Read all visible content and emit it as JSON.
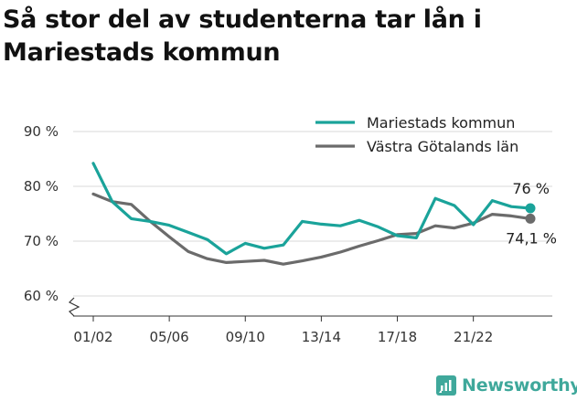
{
  "title": "Så stor del av studenterna tar lån i Mariestads kommun",
  "brand": {
    "name": "Newsworthy",
    "icon": "newsworthy-logo-icon",
    "color": "#3fa89b"
  },
  "chart_data": {
    "type": "line",
    "title": "Så stor del av studenterna tar lån i Mariestads kommun",
    "xlabel": "",
    "ylabel": "",
    "ylim": [
      60,
      90
    ],
    "yticks": [
      60,
      70,
      80,
      90
    ],
    "ytick_labels": [
      "60 %",
      "70 %",
      "80 %",
      "90 %"
    ],
    "y_axis_break": true,
    "grid": true,
    "legend_placement": "top-right",
    "categories": [
      "01/02",
      "02/03",
      "03/04",
      "04/05",
      "05/06",
      "06/07",
      "07/08",
      "08/09",
      "09/10",
      "10/11",
      "11/12",
      "12/13",
      "13/14",
      "14/15",
      "15/16",
      "16/17",
      "17/18",
      "18/19",
      "19/20",
      "20/21",
      "21/22",
      "22/23",
      "23/24",
      "24/25"
    ],
    "xtick_labels": [
      "01/02",
      "05/06",
      "09/10",
      "13/14",
      "17/18",
      "21/22"
    ],
    "series": [
      {
        "name": "Mariestads kommun",
        "color": "#1aa39a",
        "values": [
          84.2,
          77.2,
          74.1,
          73.6,
          72.9,
          71.6,
          70.3,
          67.7,
          69.6,
          68.7,
          69.3,
          73.6,
          73.1,
          72.8,
          73.8,
          72.6,
          71.0,
          70.6,
          77.8,
          76.5,
          73.0,
          77.4,
          76.3,
          76.0
        ],
        "end_label": "76 %"
      },
      {
        "name": "Västra Götalands län",
        "color": "#6b6b6b",
        "values": [
          78.6,
          77.2,
          76.7,
          73.6,
          70.8,
          68.1,
          66.8,
          66.1,
          66.3,
          66.5,
          65.8,
          66.4,
          67.1,
          68.0,
          69.1,
          70.1,
          71.2,
          71.4,
          72.8,
          72.4,
          73.3,
          74.9,
          74.6,
          74.1
        ],
        "end_label": "74,1 %"
      }
    ]
  }
}
